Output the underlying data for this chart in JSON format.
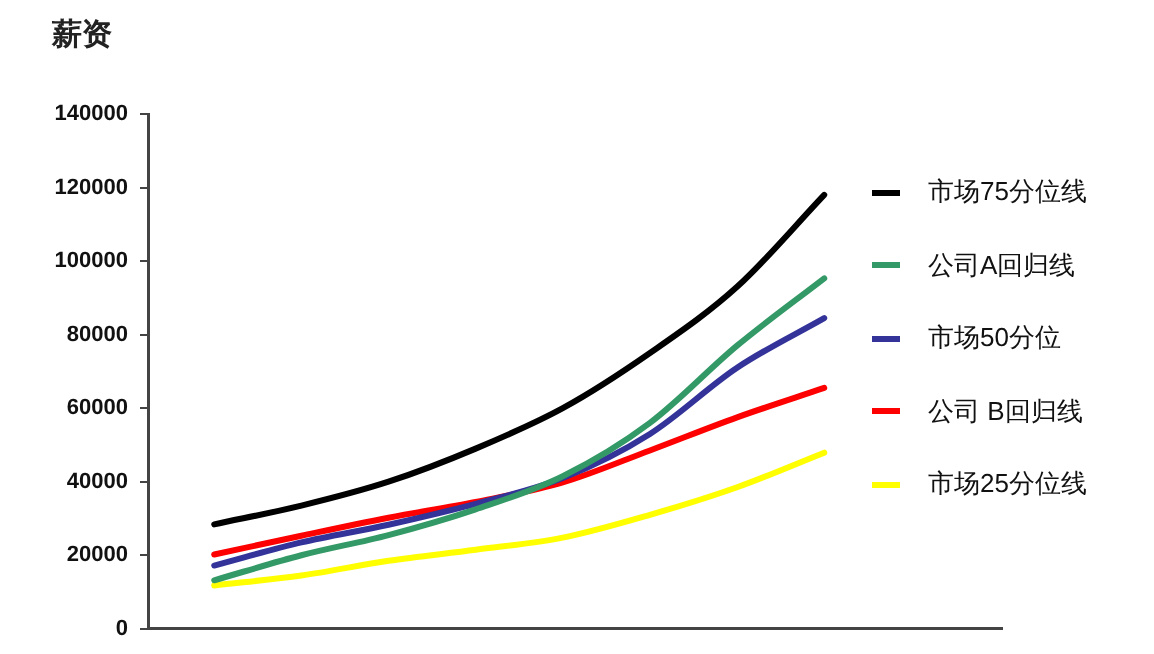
{
  "chart_data": {
    "type": "line",
    "title": "薪资",
    "categories": [
      null,
      null,
      null,
      null,
      null,
      null,
      null,
      null
    ],
    "series": [
      {
        "name": "市场75分位线",
        "color": "#000000",
        "values": [
          28400,
          33500,
          40000,
          49000,
          60000,
          75000,
          93000,
          118000
        ]
      },
      {
        "name": "公司A回归线",
        "color": "#339966",
        "values": [
          13200,
          20000,
          25500,
          32500,
          41500,
          56000,
          77000,
          95300
        ]
      },
      {
        "name": "市场50分位",
        "color": "#333399",
        "values": [
          17200,
          23500,
          28300,
          34000,
          41000,
          53000,
          71000,
          84500
        ]
      },
      {
        "name": "公司 B回归线",
        "color": "#ff0000",
        "values": [
          20200,
          25300,
          30200,
          34500,
          39800,
          48500,
          57500,
          65500
        ]
      },
      {
        "name": "市场25分位线",
        "color": "#ffff00",
        "values": [
          11800,
          14500,
          18500,
          21500,
          24800,
          31000,
          38500,
          47900
        ]
      }
    ],
    "ylim": [
      0,
      140000
    ],
    "yticks": [
      0,
      20000,
      40000,
      60000,
      80000,
      100000,
      120000,
      140000
    ],
    "legend": "right",
    "marker": "none",
    "line_style": "solid",
    "tick_labels": "y"
  }
}
